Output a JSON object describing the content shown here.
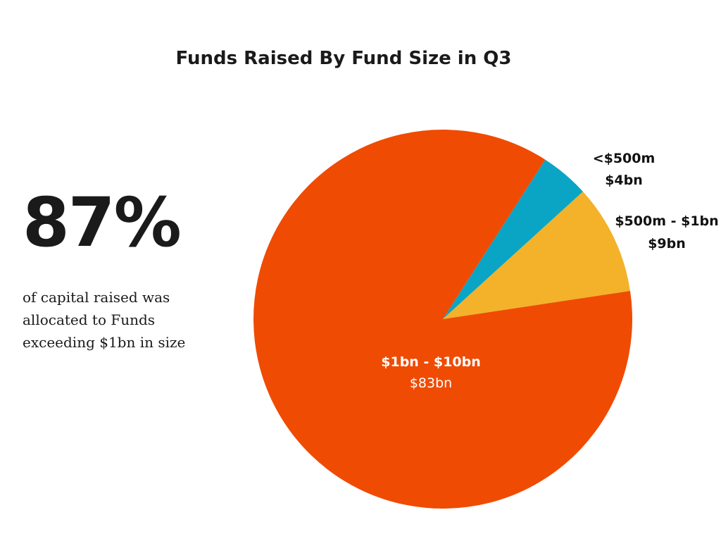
{
  "headline": {
    "stat": "87%",
    "caption": "of capital raised was allocated to Funds exceeding $1bn in size"
  },
  "chart_data": {
    "type": "pie",
    "title": "Funds Raised By Fund Size in Q3",
    "slices": [
      {
        "label": "<$500m",
        "value_label": "$4bn",
        "value": 4,
        "color": "#0aa5c4"
      },
      {
        "label": "$500m - $1bn",
        "value_label": "$9bn",
        "value": 9,
        "color": "#f3b229"
      },
      {
        "label": "$1bn - $10bn",
        "value_label": "$83bn",
        "value": 83,
        "color": "#ef4b03"
      }
    ]
  }
}
